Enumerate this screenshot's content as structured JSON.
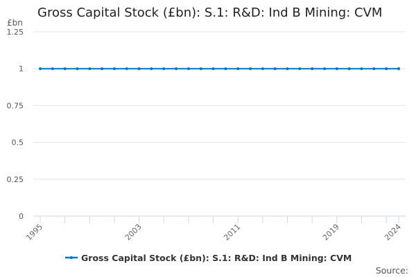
{
  "chart_data": {
    "type": "line",
    "title": "Gross Capital Stock (£bn): S.1: R&D: Ind B Mining: CVM",
    "ylabel": "£bn",
    "ylim": [
      0,
      1.25
    ],
    "yticks": [
      "0",
      "0.25",
      "0.5",
      "0.75",
      "1",
      "1.25"
    ],
    "xticks": [
      "1995",
      "2003",
      "2011",
      "2019",
      "2024"
    ],
    "x": [
      1995,
      1996,
      1997,
      1998,
      1999,
      2000,
      2001,
      2002,
      2003,
      2004,
      2005,
      2006,
      2007,
      2008,
      2009,
      2010,
      2011,
      2012,
      2013,
      2014,
      2015,
      2016,
      2017,
      2018,
      2019,
      2020,
      2021,
      2022,
      2023,
      2024
    ],
    "series": [
      {
        "name": "Gross Capital Stock (£bn): S.1: R&D: Ind B Mining: CVM",
        "color": "#0075bf",
        "values": [
          1,
          1,
          1,
          1,
          1,
          1,
          1,
          1,
          1,
          1,
          1,
          1,
          1,
          1,
          1,
          1,
          1,
          1,
          1,
          1,
          1,
          1,
          1,
          1,
          1,
          1,
          1,
          1,
          1,
          1
        ]
      }
    ],
    "grid": true,
    "legend": "bottom"
  },
  "source_label": "Source:"
}
